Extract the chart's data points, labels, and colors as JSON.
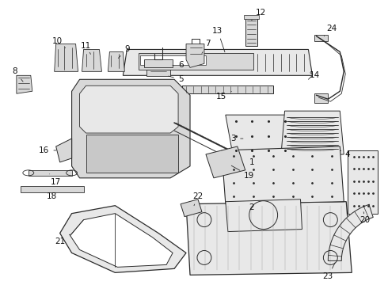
{
  "background_color": "#ffffff",
  "line_color": "#2a2a2a",
  "label_color": "#111111",
  "label_fontsize": 7.5,
  "fill_light": "#e8e8e8",
  "fill_medium": "#d8d8d8",
  "fill_dark": "#c8c8c8"
}
